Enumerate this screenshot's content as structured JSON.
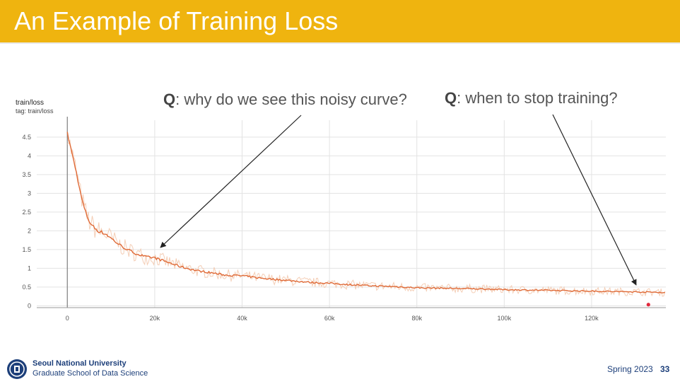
{
  "slide": {
    "title": "An Example of Training Loss",
    "question_1_prefix": "Q",
    "question_1_text": ": why do we see this noisy curve?",
    "question_2_prefix": "Q",
    "question_2_text": ": when to stop training?",
    "university": "Seoul National University",
    "school": "Graduate School of Data Science",
    "term": "Spring 2023",
    "page_number": "33",
    "accent_color": "#efb40f",
    "logo_icon": "university-seal-icon"
  },
  "chart_data": {
    "type": "line",
    "title": "train/loss",
    "subtitle": "tag: train/loss",
    "xlabel": "",
    "ylabel": "",
    "xlim": [
      -7000,
      137000
    ],
    "ylim": [
      -0.05,
      4.95
    ],
    "x_ticks": [
      0,
      20000,
      40000,
      60000,
      80000,
      100000,
      120000
    ],
    "x_tick_labels": [
      "0",
      "20k",
      "40k",
      "60k",
      "80k",
      "100k",
      "120k"
    ],
    "y_ticks": [
      0,
      0.5,
      1,
      1.5,
      2,
      2.5,
      3,
      3.5,
      4,
      4.5
    ],
    "y_tick_labels": [
      "0",
      "0.5",
      "1",
      "1.5",
      "2",
      "2.5",
      "3",
      "3.5",
      "4",
      "4.5"
    ],
    "grid": true,
    "series": [
      {
        "color": "#df6a37",
        "raw_color": "#f3c9ae",
        "x": [
          0,
          1000,
          2000,
          3000,
          4000,
          5000,
          6000,
          7000,
          8000,
          9000,
          10000,
          12000,
          14000,
          16000,
          18000,
          20000,
          22000,
          24000,
          26000,
          28000,
          30000,
          33000,
          36000,
          40000,
          44000,
          48000,
          52000,
          56000,
          60000,
          65000,
          70000,
          75000,
          80000,
          85000,
          90000,
          95000,
          100000,
          105000,
          110000,
          115000,
          120000,
          125000,
          130000,
          135000,
          137000
        ],
        "y": [
          4.6,
          4.1,
          3.6,
          3.0,
          2.55,
          2.25,
          2.1,
          2.0,
          1.95,
          1.9,
          1.8,
          1.62,
          1.48,
          1.38,
          1.3,
          1.28,
          1.2,
          1.12,
          1.04,
          0.98,
          0.93,
          0.88,
          0.82,
          0.8,
          0.74,
          0.7,
          0.66,
          0.62,
          0.6,
          0.56,
          0.53,
          0.51,
          0.48,
          0.47,
          0.46,
          0.45,
          0.43,
          0.42,
          0.41,
          0.4,
          0.39,
          0.38,
          0.37,
          0.36,
          0.35
        ]
      }
    ],
    "marker": {
      "x": 133000,
      "y": 0.03,
      "color": "#e0283c"
    }
  }
}
